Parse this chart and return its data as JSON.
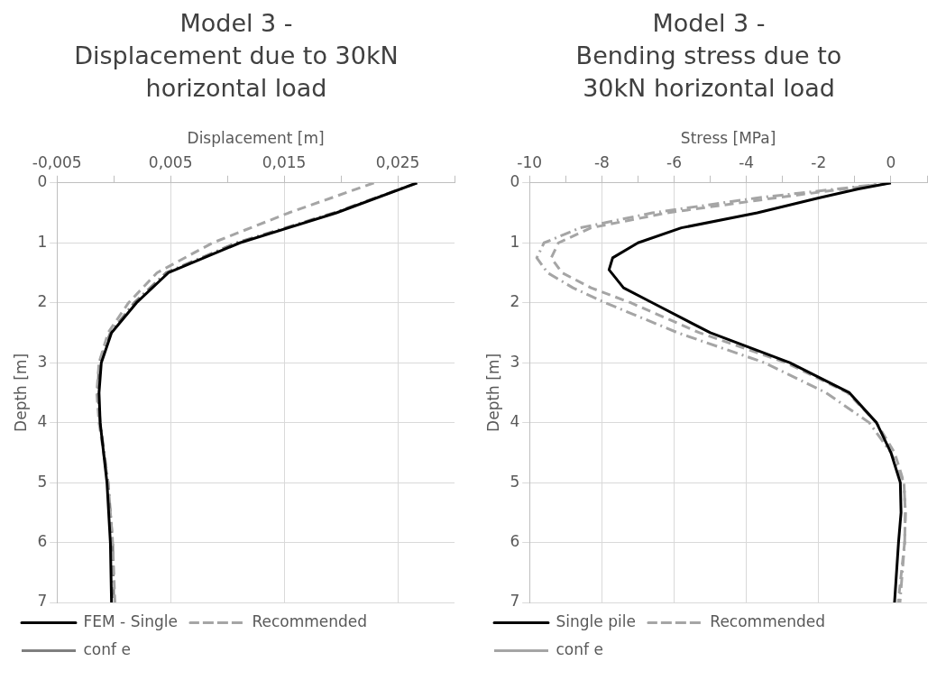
{
  "chart_data": [
    {
      "type": "line",
      "title": "Model 3 -\nDisplacement due to 30kN\nhorizontal load",
      "xlabel": "Displacement [m]",
      "ylabel": "Depth [m]",
      "xlim": [
        -0.005,
        0.03
      ],
      "xticks": [
        {
          "value": -0.005,
          "label": "-0,005"
        },
        {
          "value": 0,
          "label": null
        },
        {
          "value": 0.005,
          "label": "0,005"
        },
        {
          "value": 0.01,
          "label": null
        },
        {
          "value": 0.015,
          "label": "0,015"
        },
        {
          "value": 0.02,
          "label": null
        },
        {
          "value": 0.025,
          "label": "0,025"
        },
        {
          "value": 0.03,
          "label": null
        }
      ],
      "ylim": [
        7,
        0
      ],
      "yticks": [
        0,
        1,
        2,
        3,
        4,
        5,
        6,
        7
      ],
      "grid": true,
      "legend": "bottom",
      "marker": "none",
      "series": [
        {
          "name": "FEM - Single",
          "color": "#000000",
          "line_style": "solid",
          "x": [
            0.0267,
            0.0196,
            0.0111,
            0.0048,
            0.002,
            -0.0002,
            -0.0011,
            -0.0013,
            -0.0012,
            -0.0006,
            -0.0003,
            -0.0002
          ],
          "values": [
            0,
            0.5,
            1,
            1.5,
            2,
            2.5,
            3,
            3.5,
            4,
            5,
            6,
            7
          ]
        },
        {
          "name": "Recommended",
          "color": "#a5a5a5",
          "line_style": "dashed",
          "x": [
            0.0229,
            0.0154,
            0.0087,
            0.0038,
            0.0013,
            -0.0005,
            -0.0013,
            -0.0015,
            -0.0013,
            -0.0005,
            -0.0001,
            0.0001
          ],
          "values": [
            0,
            0.5,
            1,
            1.5,
            2,
            2.5,
            3,
            3.5,
            4,
            5,
            6,
            7
          ]
        },
        {
          "name": "conf e",
          "color": "#7f7f7f",
          "line_style": "dashdot",
          "x": [
            0.0267,
            0.0194,
            0.0108,
            0.0046,
            0.0018,
            -0.0003,
            -0.0013,
            -0.0014,
            -0.0012,
            -0.0005,
            -0.0001,
            0
          ],
          "values": [
            0,
            0.5,
            1,
            1.5,
            2,
            2.5,
            3,
            3.5,
            4,
            5,
            6,
            7
          ]
        }
      ]
    },
    {
      "type": "line",
      "title": "Model 3 -\nBending stress due to\n30kN horizontal load",
      "xlabel": "Stress [MPa]",
      "ylabel": "Depth [m]",
      "xlim": [
        -10,
        1
      ],
      "xticks": [
        -10,
        {
          "value": -9,
          "label": null
        },
        -8,
        {
          "value": -7,
          "label": null
        },
        -6,
        {
          "value": -5,
          "label": null
        },
        -4,
        {
          "value": -3,
          "label": null
        },
        -2,
        {
          "value": -1,
          "label": null
        },
        0,
        {
          "value": 1,
          "label": null
        }
      ],
      "ylim": [
        7,
        0
      ],
      "yticks": [
        0,
        1,
        2,
        3,
        4,
        5,
        6,
        7
      ],
      "grid": true,
      "legend": "bottom",
      "marker": "none",
      "series": [
        {
          "name": "Single pile",
          "color": "#000000",
          "line_style": "solid",
          "x": [
            0,
            -0.9,
            -2.0,
            -3.7,
            -5.8,
            -7.0,
            -7.7,
            -7.8,
            -7.4,
            -6.6,
            -5.0,
            -2.8,
            -1.15,
            -0.4,
            0,
            0.26,
            0.28,
            0.21,
            0.1
          ],
          "values": [
            0,
            0.1,
            0.25,
            0.5,
            0.75,
            1,
            1.25,
            1.45,
            1.75,
            2,
            2.5,
            3,
            3.5,
            4,
            4.5,
            5,
            5.5,
            6,
            7
          ]
        },
        {
          "name": "Recommended",
          "color": "#a5a5a5",
          "line_style": "dashed",
          "x": [
            0,
            -3.2,
            -6.2,
            -8.3,
            -9.2,
            -9.4,
            -9.1,
            -8.3,
            -7.2,
            -5.3,
            -2.9,
            -1.2,
            -0.4,
            0.1,
            0.36,
            0.4,
            0.38,
            0.2
          ],
          "values": [
            0,
            0.25,
            0.5,
            0.75,
            1,
            1.25,
            1.5,
            1.75,
            2,
            2.5,
            3,
            3.5,
            4,
            4.5,
            5,
            5.5,
            6,
            7
          ]
        },
        {
          "name": "conf e",
          "color": "#a5a5a5",
          "line_style": "dashdot",
          "x": [
            0,
            -3.7,
            -6.6,
            -8.6,
            -9.6,
            -9.8,
            -9.5,
            -8.8,
            -7.9,
            -5.9,
            -3.5,
            -1.8,
            -0.6,
            0,
            0.36,
            0.4,
            0.38,
            0.25
          ],
          "values": [
            0,
            0.25,
            0.5,
            0.75,
            1,
            1.25,
            1.5,
            1.75,
            2,
            2.5,
            3,
            3.5,
            4,
            4.5,
            5,
            5.5,
            6,
            7
          ]
        }
      ]
    }
  ]
}
